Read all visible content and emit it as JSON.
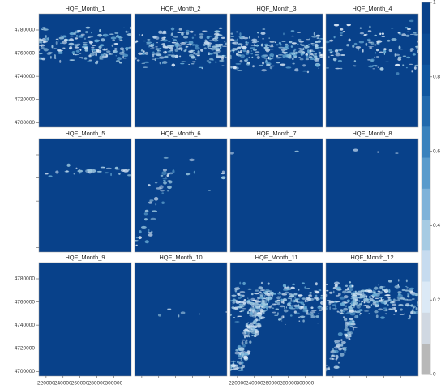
{
  "chart_data": {
    "type": "raster",
    "panels": [
      "HQF_Month_1",
      "HQF_Month_2",
      "HQF_Month_3",
      "HQF_Month_4",
      "HQF_Month_5",
      "HQF_Month_6",
      "HQF_Month_7",
      "HQF_Month_8",
      "HQF_Month_9",
      "HQF_Month_10",
      "HQF_Month_11",
      "HQF_Month_12"
    ],
    "xlim": [
      211500,
      320700
    ],
    "xticks": [
      220000,
      240000,
      260000,
      280000,
      300000
    ],
    "ylim": [
      4696000,
      4794000
    ],
    "yticks": [
      4700000,
      4720000,
      4740000,
      4760000,
      4780000
    ],
    "colorbar": {
      "zlim": [
        0,
        1
      ],
      "ticks": [
        0,
        0.2,
        0.4,
        0.6,
        0.8,
        1
      ],
      "colors": [
        "#b8b8b8",
        "#d0d8e2",
        "#dbe9f6",
        "#c6dbef",
        "#a6cbe3",
        "#7fb2d9",
        "#5a9bcc",
        "#3a82bd",
        "#2169ad",
        "#0f569f",
        "#0b4a93",
        "#08418a"
      ]
    }
  }
}
